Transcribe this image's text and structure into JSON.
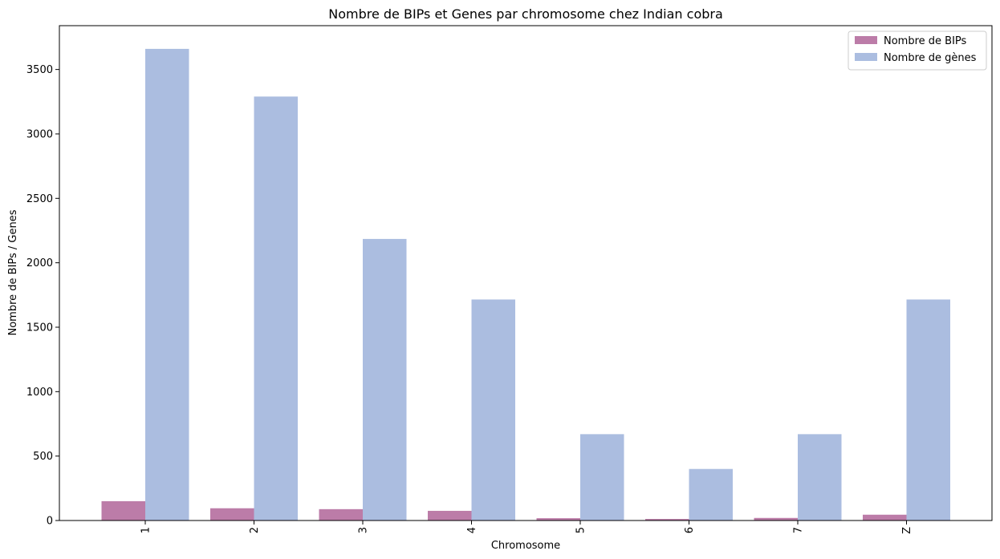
{
  "chart_data": {
    "type": "bar",
    "title": "Nombre de BIPs et Genes par chromosome chez Indian cobra",
    "xlabel": "Chromosome",
    "ylabel": "Nombre de BIPs / Genes",
    "categories": [
      "1",
      "2",
      "3",
      "4",
      "5",
      "6",
      "7",
      "Z"
    ],
    "ylim": [
      0,
      3840
    ],
    "yticks": [
      0,
      500,
      1000,
      1500,
      2000,
      2500,
      3000,
      3500
    ],
    "grid": false,
    "legend_position": "top-right",
    "series": [
      {
        "name": "Nombre de BIPs",
        "color": "#bc7ca8",
        "values": [
          150,
          95,
          88,
          75,
          18,
          12,
          20,
          45
        ]
      },
      {
        "name": "Nombre de gènes",
        "color": "#abbde0",
        "values": [
          3660,
          3290,
          2185,
          1715,
          670,
          400,
          670,
          1715
        ]
      }
    ]
  }
}
